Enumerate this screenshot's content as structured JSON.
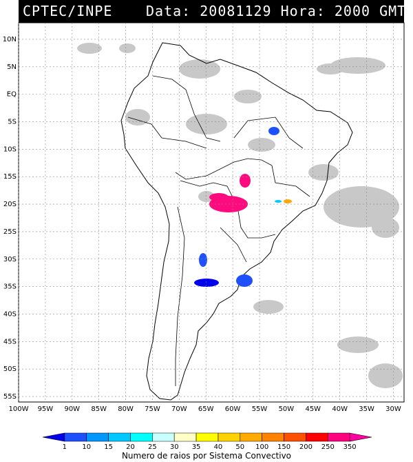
{
  "header": {
    "left_text": "CPTEC/INPE",
    "right_text": "Data: 20081129 Hora: 2000 GMT"
  },
  "map": {
    "lat_labels": [
      "10N",
      "5N",
      "EQ",
      "5S",
      "10S",
      "15S",
      "20S",
      "25S",
      "30S",
      "35S",
      "40S",
      "45S",
      "50S",
      "55S"
    ],
    "lon_labels": [
      "100W",
      "95W",
      "90W",
      "85W",
      "80W",
      "75W",
      "70W",
      "65W",
      "60W",
      "55W",
      "50W",
      "45W",
      "40W",
      "35W",
      "30W"
    ],
    "lat_values": [
      10,
      5,
      0,
      -5,
      -10,
      -15,
      -20,
      -25,
      -30,
      -35,
      -40,
      -45,
      -50,
      -55
    ],
    "lon_values": [
      -100,
      -95,
      -90,
      -85,
      -80,
      -75,
      -70,
      -65,
      -60,
      -55,
      -50,
      -45,
      -40,
      -35,
      -30
    ],
    "extent": {
      "lon_min": -100,
      "lon_max": -28,
      "lat_min": -56,
      "lat_max": 13
    }
  },
  "colorbar": {
    "labels": [
      "1",
      "10",
      "15",
      "20",
      "25",
      "30",
      "35",
      "40",
      "50",
      "100",
      "150",
      "200",
      "250",
      "350"
    ],
    "colors": [
      "#0000ee",
      "#1e50ff",
      "#0096ff",
      "#00c8ff",
      "#00ffff",
      "#c8ffff",
      "#ffffc8",
      "#ffff00",
      "#ffd200",
      "#ffaa00",
      "#ff8200",
      "#ff5000",
      "#ff0000",
      "#ff007f",
      "#ff00a0"
    ],
    "title": "Numero de raios por Sistema Convectivo"
  }
}
